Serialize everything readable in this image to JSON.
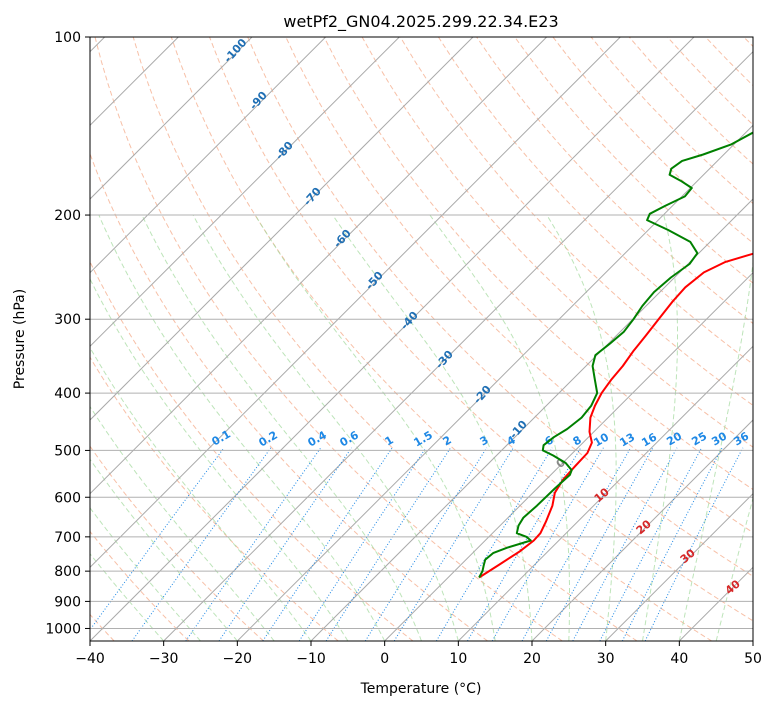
{
  "chart_data": {
    "type": "skew-t",
    "title": "wetPf2_GN04.2025.299.22.34.E23",
    "xlabel": "Temperature (°C)",
    "ylabel": "Pressure (hPa)",
    "xlim": [
      -40,
      50
    ],
    "ylim": [
      1050,
      100
    ],
    "x_ticks": [
      -40,
      -30,
      -20,
      -10,
      0,
      10,
      20,
      30,
      40,
      50
    ],
    "y_ticks": [
      1000,
      900,
      800,
      700,
      600,
      500,
      400,
      300,
      200,
      100
    ],
    "grid": true,
    "colors": {
      "temperature": "#ff0000",
      "dewpoint": "#008000",
      "isotherm": "#aaaaaa",
      "dry_adiabat": "#f4a582",
      "moist_adiabat": "#a1d99b",
      "mixing_ratio": "#1e88e5",
      "isotherm_label": "#1f6fb4",
      "adiabat_label": "#d62728"
    },
    "isotherm_labels": [
      "-100",
      "-90",
      "-80",
      "-70",
      "-60",
      "-50",
      "-40",
      "-30",
      "-20",
      "-10"
    ],
    "mixing_ratio_labels": [
      "0.1",
      "0.2",
      "0.4",
      "0.6",
      "1",
      "1.5",
      "2",
      "3",
      "4",
      "6",
      "8",
      "10",
      "13",
      "16",
      "20",
      "25",
      "30",
      "36"
    ],
    "adiabat_labels": [
      "0",
      "10",
      "20",
      "30",
      "40"
    ],
    "series": [
      {
        "name": "Temperature",
        "points": [
          [
            4.2,
            820
          ],
          [
            5.2,
            780
          ],
          [
            6.2,
            740
          ],
          [
            6.6,
            710
          ],
          [
            6.5,
            690
          ],
          [
            5.7,
            660
          ],
          [
            4.4,
            620
          ],
          [
            3.0,
            590
          ],
          [
            2.3,
            560
          ],
          [
            2.1,
            530
          ],
          [
            2.0,
            505
          ],
          [
            1.2,
            485
          ],
          [
            -0.6,
            465
          ],
          [
            -2.4,
            440
          ],
          [
            -3.4,
            420
          ],
          [
            -4.2,
            400
          ],
          [
            -4.7,
            380
          ],
          [
            -5.0,
            360
          ],
          [
            -5.6,
            340
          ],
          [
            -6.0,
            320
          ],
          [
            -6.5,
            300
          ],
          [
            -7.0,
            280
          ],
          [
            -7.2,
            265
          ],
          [
            -6.7,
            250
          ],
          [
            -5.2,
            240
          ],
          [
            -1.7,
            230
          ],
          [
            1.6,
            220
          ],
          [
            3.6,
            210
          ],
          [
            5.2,
            200
          ],
          [
            6.3,
            190
          ],
          [
            8.0,
            180
          ],
          [
            10.0,
            170
          ],
          [
            11.8,
            160
          ],
          [
            14.6,
            150
          ],
          [
            18.0,
            140
          ],
          [
            20.5,
            130
          ],
          [
            22.4,
            122
          ],
          [
            23.6,
            115
          ],
          [
            24.5,
            108
          ],
          [
            25.0,
            100
          ]
        ]
      },
      {
        "name": "Dewpoint",
        "points": [
          [
            4.2,
            820
          ],
          [
            3.8,
            800
          ],
          [
            3.1,
            780
          ],
          [
            2.6,
            765
          ],
          [
            2.8,
            745
          ],
          [
            4.0,
            730
          ],
          [
            6.2,
            710
          ],
          [
            5.1,
            700
          ],
          [
            3.3,
            690
          ],
          [
            2.5,
            670
          ],
          [
            2.1,
            650
          ],
          [
            2.3,
            620
          ],
          [
            2.4,
            580
          ],
          [
            2.6,
            550
          ],
          [
            2.2,
            540
          ],
          [
            0.4,
            525
          ],
          [
            -2.3,
            510
          ],
          [
            -4.4,
            500
          ],
          [
            -5.0,
            490
          ],
          [
            -4.7,
            475
          ],
          [
            -4.0,
            460
          ],
          [
            -3.6,
            440
          ],
          [
            -3.9,
            420
          ],
          [
            -4.8,
            400
          ],
          [
            -6.9,
            380
          ],
          [
            -9.1,
            360
          ],
          [
            -10.2,
            345
          ],
          [
            -9.8,
            330
          ],
          [
            -9.5,
            315
          ],
          [
            -9.9,
            300
          ],
          [
            -10.5,
            285
          ],
          [
            -10.8,
            270
          ],
          [
            -10.5,
            255
          ],
          [
            -9.8,
            242
          ],
          [
            -10.2,
            232
          ],
          [
            -12.7,
            222
          ],
          [
            -17.3,
            212
          ],
          [
            -21.5,
            204
          ],
          [
            -22.0,
            199
          ],
          [
            -21.0,
            193
          ],
          [
            -19.6,
            186
          ],
          [
            -19.8,
            180
          ],
          [
            -22.3,
            175
          ],
          [
            -24.6,
            171
          ],
          [
            -25.2,
            167
          ],
          [
            -24.8,
            162
          ],
          [
            -22.8,
            158
          ],
          [
            -20.4,
            152
          ],
          [
            -19.0,
            145
          ],
          [
            -19.6,
            138
          ],
          [
            -19.4,
            130
          ],
          [
            -18.2,
            122
          ],
          [
            -16.8,
            116
          ],
          [
            -13.4,
            110
          ],
          [
            -9.6,
            104
          ],
          [
            -7.5,
            100
          ]
        ]
      }
    ]
  }
}
